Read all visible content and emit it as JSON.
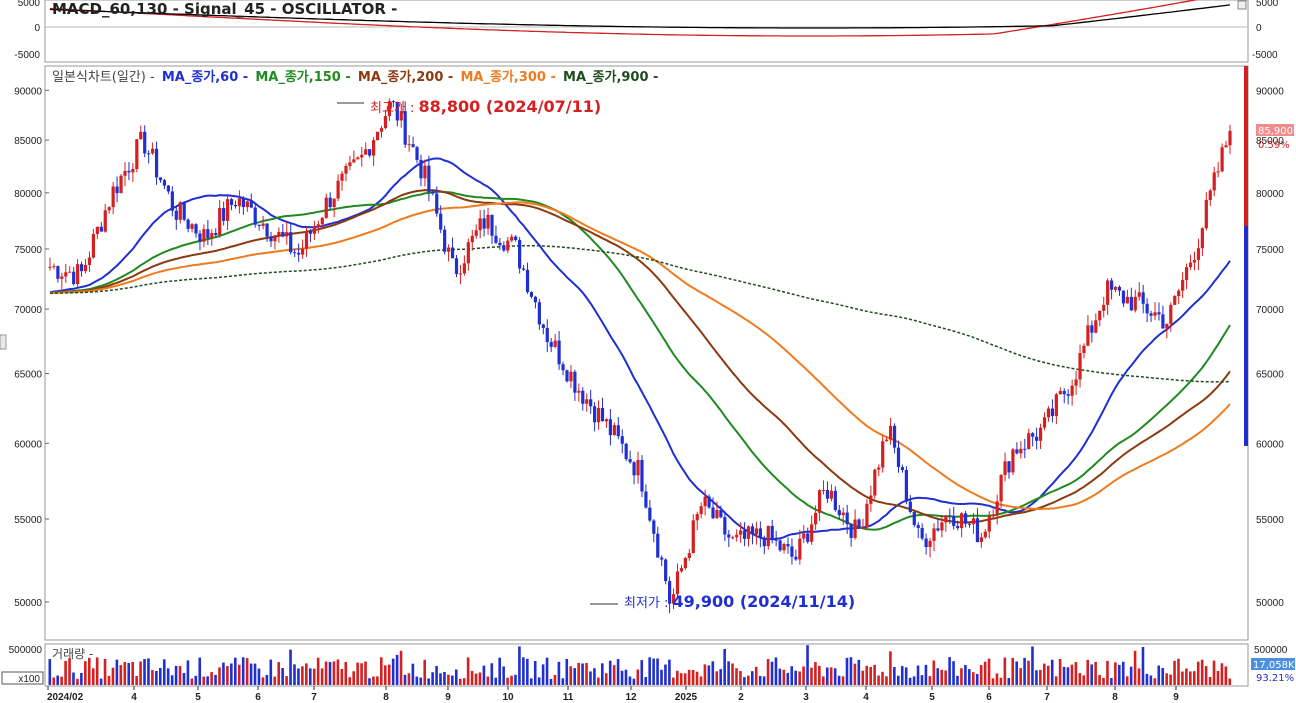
{
  "macd_panel": {
    "title": "MACD_60,130 - Signal_45 - OSCILLATOR -",
    "y_ticks": [
      "5000",
      "0",
      "-5000"
    ]
  },
  "price_panel": {
    "legend": [
      {
        "text": "일본식차트(일간) -",
        "color": "#444444"
      },
      {
        "text": "MA_종가,60 -",
        "color": "#1f2fd0"
      },
      {
        "text": "MA_종가,150 -",
        "color": "#1f8a1f"
      },
      {
        "text": "MA_종가,200 -",
        "color": "#8b3a0f"
      },
      {
        "text": "MA_종가,300 -",
        "color": "#f07a1e"
      },
      {
        "text": "MA_종가,900 -",
        "color": "#1d4d1d"
      }
    ],
    "high_annotation": {
      "label": "최고가 : ",
      "value": "88,800 (2024/07/11)"
    },
    "low_annotation": {
      "label": "최저가 : ",
      "value": "49,900 (2024/11/14)"
    },
    "y_ticks": [
      "90000",
      "85000",
      "80000",
      "75000",
      "70000",
      "65000",
      "60000",
      "55000",
      "50000"
    ],
    "last_price": "85,900",
    "last_change": "0.59%"
  },
  "volume_panel": {
    "title": "거래량 -",
    "y_ticks_left": [
      "500000",
      "x100"
    ],
    "y_tick_right": "500000",
    "last_volume": "17,058K",
    "last_pct": "93.21%"
  },
  "x_axis": {
    "labels": [
      "2024/02",
      "4",
      "5",
      "6",
      "7",
      "8",
      "9",
      "10",
      "11",
      "12",
      "2025",
      "2",
      "3",
      "4",
      "5",
      "6",
      "7",
      "8",
      "9"
    ]
  },
  "chart_data": {
    "type": "candlestick",
    "title": "일본식차트(일간)",
    "ylim": [
      49000,
      92000
    ],
    "y_scale": "log",
    "price_path": [
      [
        "2024/02",
        73500
      ],
      [
        "2024/03",
        72800
      ],
      [
        "2024/03-end",
        80000
      ],
      [
        "2024/04-early",
        85000
      ],
      [
        "2024/04-mid",
        78500
      ],
      [
        "2024/04-end",
        76000
      ],
      [
        "2024/05-mid",
        79500
      ],
      [
        "2024/05-end",
        77000
      ],
      [
        "2024/06-early",
        74500
      ],
      [
        "2024/06-end",
        79500
      ],
      [
        "2024/07-early",
        83000
      ],
      [
        "2024/07/11",
        88800
      ],
      [
        "2024/07-end",
        82000
      ],
      [
        "2024/08-early",
        73000
      ],
      [
        "2024/08-mid",
        77500
      ],
      [
        "2024/08-end",
        75000
      ],
      [
        "2024/09-early",
        68000
      ],
      [
        "2024/09-mid",
        64000
      ],
      [
        "2024/10-early",
        61000
      ],
      [
        "2024/10-end",
        58000
      ],
      [
        "2024/11/14",
        49900
      ],
      [
        "2024/11-end",
        56000
      ],
      [
        "2024/12-mid",
        53500
      ],
      [
        "2025/01-mid",
        54000
      ],
      [
        "2025/02-early",
        52500
      ],
      [
        "2025/02-end",
        57000
      ],
      [
        "2025/03-mid",
        54000
      ],
      [
        "2025/03-end",
        61000
      ],
      [
        "2025/04-early",
        53500
      ],
      [
        "2025/04-end",
        55500
      ],
      [
        "2025/05-end",
        54000
      ],
      [
        "2025/06-mid",
        59500
      ],
      [
        "2025/07-early",
        61000
      ],
      [
        "2025/07-mid",
        65000
      ],
      [
        "2025/07-end",
        71500
      ],
      [
        "2025/08-mid",
        70500
      ],
      [
        "2025/09-early",
        69000
      ],
      [
        "2025/09-mid",
        76000
      ],
      [
        "2025/09-end",
        85900
      ]
    ],
    "series": [
      {
        "name": "MA_종가,60",
        "color": "#1f2fd0"
      },
      {
        "name": "MA_종가,150",
        "color": "#1f8a1f"
      },
      {
        "name": "MA_종가,200",
        "color": "#8b3a0f"
      },
      {
        "name": "MA_종가,300",
        "color": "#f07a1e"
      },
      {
        "name": "MA_종가,900",
        "color": "#1d4d1d"
      }
    ],
    "macd": {
      "name": "MACD_60,130",
      "color": "#000000"
    },
    "signal": {
      "name": "Signal_45",
      "color": "#d42020"
    },
    "high": {
      "value": 88800,
      "date": "2024/07/11"
    },
    "low": {
      "value": 49900,
      "date": "2024/11/14"
    },
    "last": {
      "value": 85900,
      "change_pct": 0.59
    }
  }
}
